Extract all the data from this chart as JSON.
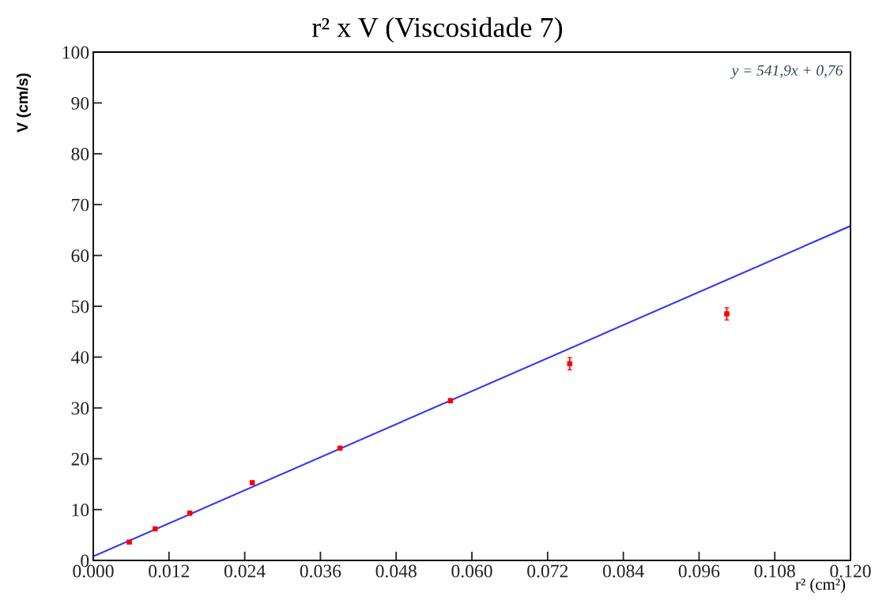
{
  "chart_data": {
    "type": "scatter",
    "title": "r² x V (Viscosidade 7)",
    "xlabel": "r² (cm²)",
    "ylabel": "V (cm/s)",
    "series": [
      {
        "color": "#ff0000",
        "marker": "square",
        "x": [
          0.0057,
          0.0098,
          0.0153,
          0.0252,
          0.0391,
          0.0566,
          0.0755,
          0.1004
        ],
        "values": [
          3.6,
          6.2,
          9.3,
          15.3,
          22.1,
          31.4,
          38.7,
          48.5
        ],
        "errors": [
          0.2,
          0.2,
          0.2,
          0.2,
          0.2,
          0.4,
          1.2,
          1.2
        ]
      },
      {
        "type": "line",
        "color": "#3333ff",
        "x": [
          0.0,
          0.12
        ],
        "values": [
          0.8,
          65.8
        ]
      }
    ],
    "annotations": [
      "y = 541,9x + 0,76"
    ],
    "xlim": [
      0.0,
      0.12
    ],
    "ylim": [
      0,
      100
    ],
    "xticks": [
      {
        "value": 0.0,
        "label": "0.000"
      },
      {
        "value": 0.012,
        "label": "0.012"
      },
      {
        "value": 0.024,
        "label": "0.024"
      },
      {
        "value": 0.036,
        "label": "0.036"
      },
      {
        "value": 0.048,
        "label": "0.048"
      },
      {
        "value": 0.06,
        "label": "0.060"
      },
      {
        "value": 0.072,
        "label": "0.072"
      },
      {
        "value": 0.084,
        "label": "0.084"
      },
      {
        "value": 0.096,
        "label": "0.096"
      },
      {
        "value": 0.108,
        "label": "0.108"
      },
      {
        "value": 0.12,
        "label": "0.120"
      }
    ],
    "yticks": [
      0,
      10,
      20,
      30,
      40,
      50,
      60,
      70,
      80,
      90,
      100
    ],
    "grid": false,
    "legend": false
  }
}
